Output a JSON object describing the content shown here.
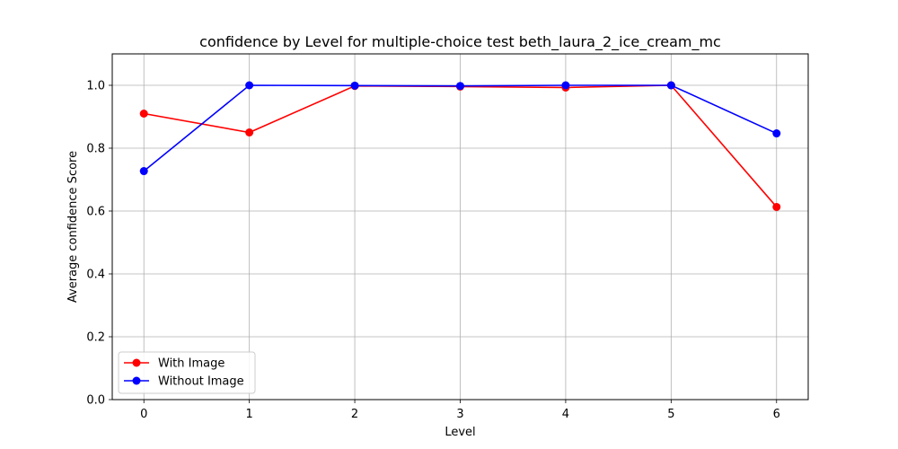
{
  "chart_data": {
    "type": "line",
    "title": "confidence by Level for multiple-choice test beth_laura_2_ice_cream_mc",
    "xlabel": "Level",
    "ylabel": "Average confidence Score",
    "x": [
      0,
      1,
      2,
      3,
      4,
      5,
      6
    ],
    "xticks": [
      "0",
      "1",
      "2",
      "3",
      "4",
      "5",
      "6"
    ],
    "yticks": [
      "0.0",
      "0.2",
      "0.4",
      "0.6",
      "0.8",
      "1.0"
    ],
    "xlim": [
      -0.3,
      6.3
    ],
    "ylim": [
      0.0,
      1.1
    ],
    "grid": true,
    "legend_position": "lower-left",
    "series": [
      {
        "name": "With Image",
        "color": "#ff0000",
        "marker": "circle",
        "values": [
          0.91,
          0.85,
          0.998,
          0.996,
          0.993,
          1.0,
          0.613
        ]
      },
      {
        "name": "Without Image",
        "color": "#0000ff",
        "marker": "circle",
        "values": [
          0.727,
          1.0,
          0.999,
          0.998,
          1.0,
          1.0,
          0.847
        ]
      }
    ]
  }
}
